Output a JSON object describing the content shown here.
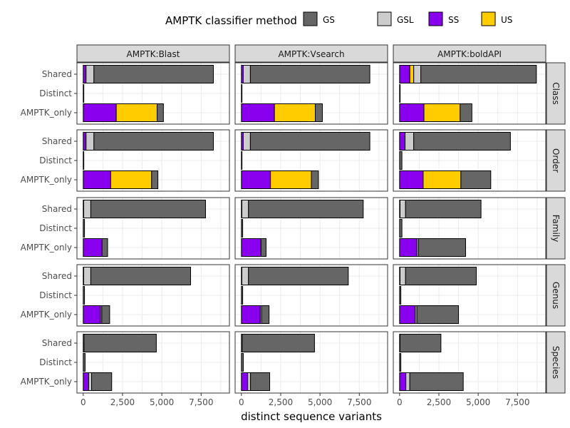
{
  "chart_data": {
    "type": "bar",
    "orientation": "horizontal",
    "stacked": true,
    "legend": {
      "title": "AMPTK classifier method",
      "placement": "top",
      "entries": [
        {
          "name": "GS",
          "color": "#666666"
        },
        {
          "name": "GSL",
          "color": "#cccccc"
        },
        {
          "name": "SS",
          "color": "#8800ee"
        },
        {
          "name": "US",
          "color": "#ffcc00"
        }
      ]
    },
    "xlabel": "distinct sequence variants",
    "xlim": [
      -400,
      9300
    ],
    "xticks": [
      {
        "value": 0,
        "label": "0"
      },
      {
        "value": 2500,
        "label": "2,500"
      },
      {
        "value": 5000,
        "label": "5,000"
      },
      {
        "value": 7500,
        "label": "7,500"
      }
    ],
    "categories": [
      "Shared",
      "Distinct",
      "AMPTK_only"
    ],
    "stack_order": [
      "SS",
      "US",
      "GSL",
      "GS"
    ],
    "columns": [
      "AMPTK:Blast",
      "AMPTK:Vsearch",
      "AMPTK:boldAPI"
    ],
    "rows": [
      "Class",
      "Order",
      "Family",
      "Genus",
      "Species"
    ],
    "panels": [
      [
        {
          "Shared": {
            "SS": 180,
            "US": 0,
            "GSL": 500,
            "GS": 7600
          },
          "Distinct": {
            "SS": 0,
            "US": 0,
            "GSL": 0,
            "GS": 30
          },
          "AMPTK_only": {
            "SS": 2100,
            "US": 2600,
            "GSL": 0,
            "GS": 400
          }
        },
        {
          "Shared": {
            "SS": 180,
            "US": 0,
            "GSL": 500,
            "GS": 7600
          },
          "Distinct": {
            "SS": 0,
            "US": 0,
            "GSL": 0,
            "GS": 30
          },
          "AMPTK_only": {
            "SS": 1750,
            "US": 2600,
            "GSL": 0,
            "GS": 400
          }
        },
        {
          "Shared": {
            "SS": 30,
            "US": 0,
            "GSL": 450,
            "GS": 7300
          },
          "Distinct": {
            "SS": 0,
            "US": 0,
            "GSL": 0,
            "GS": 80
          },
          "AMPTK_only": {
            "SS": 1200,
            "US": 0,
            "GSL": 0,
            "GS": 350
          }
        },
        {
          "Shared": {
            "SS": 30,
            "US": 0,
            "GSL": 450,
            "GS": 6350
          },
          "Distinct": {
            "SS": 0,
            "US": 0,
            "GSL": 0,
            "GS": 80
          },
          "AMPTK_only": {
            "SS": 1100,
            "US": 0,
            "GSL": 80,
            "GS": 500
          }
        },
        {
          "Shared": {
            "SS": 0,
            "US": 0,
            "GSL": 50,
            "GS": 4600
          },
          "Distinct": {
            "SS": 0,
            "US": 0,
            "GSL": 0,
            "GS": 120
          },
          "AMPTK_only": {
            "SS": 350,
            "US": 0,
            "GSL": 180,
            "GS": 1280
          }
        }
      ],
      [
        {
          "Shared": {
            "SS": 120,
            "US": 0,
            "GSL": 450,
            "GS": 7600
          },
          "Distinct": {
            "SS": 0,
            "US": 0,
            "GSL": 0,
            "GS": 30
          },
          "AMPTK_only": {
            "SS": 2100,
            "US": 2600,
            "GSL": 0,
            "GS": 450
          }
        },
        {
          "Shared": {
            "SS": 120,
            "US": 0,
            "GSL": 450,
            "GS": 7600
          },
          "Distinct": {
            "SS": 0,
            "US": 0,
            "GSL": 0,
            "GS": 30
          },
          "AMPTK_only": {
            "SS": 1850,
            "US": 2600,
            "GSL": 0,
            "GS": 450
          }
        },
        {
          "Shared": {
            "SS": 30,
            "US": 0,
            "GSL": 420,
            "GS": 7300
          },
          "Distinct": {
            "SS": 0,
            "US": 0,
            "GSL": 0,
            "GS": 80
          },
          "AMPTK_only": {
            "SS": 1250,
            "US": 0,
            "GSL": 0,
            "GS": 320
          }
        },
        {
          "Shared": {
            "SS": 30,
            "US": 0,
            "GSL": 420,
            "GS": 6350
          },
          "Distinct": {
            "SS": 0,
            "US": 0,
            "GSL": 0,
            "GS": 80
          },
          "AMPTK_only": {
            "SS": 1200,
            "US": 0,
            "GSL": 80,
            "GS": 480
          }
        },
        {
          "Shared": {
            "SS": 0,
            "US": 0,
            "GSL": 50,
            "GS": 4600
          },
          "Distinct": {
            "SS": 0,
            "US": 0,
            "GSL": 0,
            "GS": 120
          },
          "AMPTK_only": {
            "SS": 400,
            "US": 0,
            "GSL": 180,
            "GS": 1220
          }
        }
      ],
      [
        {
          "Shared": {
            "SS": 650,
            "US": 250,
            "GSL": 450,
            "GS": 7350
          },
          "Distinct": {
            "SS": 0,
            "US": 0,
            "GSL": 0,
            "GS": 30
          },
          "AMPTK_only": {
            "SS": 1550,
            "US": 2300,
            "GSL": 0,
            "GS": 750
          }
        },
        {
          "Shared": {
            "SS": 350,
            "US": 0,
            "GSL": 550,
            "GS": 6150
          },
          "Distinct": {
            "SS": 0,
            "US": 0,
            "GSL": 0,
            "GS": 150
          },
          "AMPTK_only": {
            "SS": 1500,
            "US": 2400,
            "GSL": 0,
            "GS": 1900
          }
        },
        {
          "Shared": {
            "SS": 30,
            "US": 0,
            "GSL": 350,
            "GS": 4800
          },
          "Distinct": {
            "SS": 0,
            "US": 0,
            "GSL": 0,
            "GS": 150
          },
          "AMPTK_only": {
            "SS": 1100,
            "US": 0,
            "GSL": 100,
            "GS": 3000
          }
        },
        {
          "Shared": {
            "SS": 30,
            "US": 0,
            "GSL": 350,
            "GS": 4500
          },
          "Distinct": {
            "SS": 0,
            "US": 0,
            "GSL": 0,
            "GS": 80
          },
          "AMPTK_only": {
            "SS": 1000,
            "US": 0,
            "GSL": 100,
            "GS": 2650
          }
        },
        {
          "Shared": {
            "SS": 0,
            "US": 0,
            "GSL": 30,
            "GS": 2600
          },
          "Distinct": {
            "SS": 0,
            "US": 0,
            "GSL": 0,
            "GS": 80
          },
          "AMPTK_only": {
            "SS": 400,
            "US": 0,
            "GSL": 250,
            "GS": 3400
          }
        }
      ]
    ]
  }
}
